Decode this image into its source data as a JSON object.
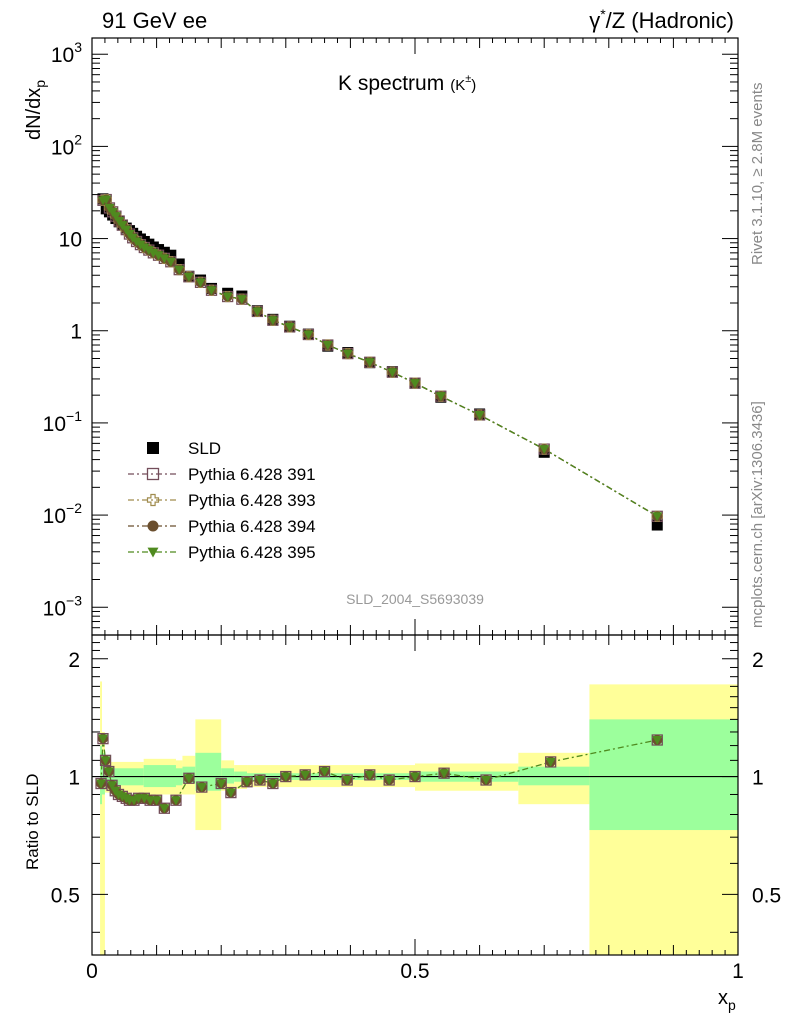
{
  "header": {
    "left": "91 GeV ee",
    "right_prefix": "γ",
    "right_sup": "*",
    "right_suffix": "/Z (Hadronic)"
  },
  "side_text": {
    "top": "Rivet 3.1.10, ≥ 2.8M events",
    "bottom": "mcplots.cern.ch [arXiv:1306.3436]"
  },
  "analysis_ref": "SLD_2004_S5693039",
  "chart_data": [
    {
      "type": "scatter",
      "title": "K spectrum",
      "title_sub": "(K",
      "title_sup": "±",
      "title_close": ")",
      "ylabel": "dN/dx",
      "ylabel_sub": "p",
      "xlim": [
        0,
        1
      ],
      "ylim": [
        0.0005,
        1500
      ],
      "yscale": "log",
      "y_ticks": [
        {
          "base": "10",
          "exp": "3",
          "value": 1000
        },
        {
          "base": "10",
          "exp": "2",
          "value": 100
        },
        {
          "base": "10",
          "exp": "",
          "value": 10
        },
        {
          "base": "1",
          "exp": "",
          "value": 1
        },
        {
          "base": "10",
          "exp": "−1",
          "value": 0.1
        },
        {
          "base": "10",
          "exp": "−2",
          "value": 0.01
        },
        {
          "base": "10",
          "exp": "−3",
          "value": 0.001
        }
      ],
      "legend_position": "bottom-left",
      "x": [
        0.017,
        0.022,
        0.027,
        0.032,
        0.037,
        0.042,
        0.047,
        0.053,
        0.058,
        0.063,
        0.069,
        0.075,
        0.081,
        0.088,
        0.095,
        0.103,
        0.112,
        0.122,
        0.135,
        0.15,
        0.168,
        0.185,
        0.21,
        0.232,
        0.256,
        0.28,
        0.306,
        0.335,
        0.365,
        0.396,
        0.43,
        0.465,
        0.5,
        0.54,
        0.6,
        0.7,
        0.875
      ],
      "series": [
        {
          "name": "SLD",
          "color": "#000000",
          "marker": "square-filled",
          "values": [
            27,
            21,
            19.5,
            18,
            16.5,
            15.2,
            14,
            13,
            12.2,
            11.4,
            10.6,
            9.9,
            9.3,
            8.7,
            8.1,
            7.6,
            7.1,
            6.6,
            5.3,
            3.9,
            3.55,
            2.88,
            2.55,
            2.38,
            1.65,
            1.33,
            1.12,
            0.92,
            0.68,
            0.58,
            0.45,
            0.36,
            0.27,
            0.19,
            0.125,
            0.048,
            0.0078
          ]
        },
        {
          "name": "Pythia 6.428 391",
          "color": "#734d5a",
          "marker": "square-open",
          "line": "dashdot",
          "values": [
            26,
            26.5,
            21.5,
            19.5,
            17.5,
            15.5,
            14,
            12.5,
            11.2,
            10.2,
            9.3,
            8.6,
            8.0,
            7.5,
            7.0,
            6.6,
            6.1,
            5.6,
            4.6,
            3.85,
            3.35,
            2.75,
            2.35,
            2.2,
            1.62,
            1.3,
            1.1,
            0.91,
            0.7,
            0.565,
            0.455,
            0.355,
            0.27,
            0.195,
            0.122,
            0.052,
            0.0097
          ]
        },
        {
          "name": "Pythia 6.428 393",
          "color": "#a08c4e",
          "marker": "cross-open",
          "line": "dashdot",
          "values": [
            26,
            26.5,
            21.5,
            19.5,
            17.5,
            15.5,
            14,
            12.5,
            11.2,
            10.2,
            9.3,
            8.6,
            8.0,
            7.5,
            7.0,
            6.6,
            6.1,
            5.6,
            4.6,
            3.85,
            3.35,
            2.75,
            2.35,
            2.2,
            1.62,
            1.3,
            1.1,
            0.91,
            0.7,
            0.565,
            0.455,
            0.355,
            0.27,
            0.195,
            0.122,
            0.052,
            0.0097
          ]
        },
        {
          "name": "Pythia 6.428 394",
          "color": "#6b4f2e",
          "marker": "circle-filled",
          "line": "dashdot",
          "values": [
            26,
            26.5,
            21.5,
            19.5,
            17.5,
            15.5,
            14,
            12.5,
            11.2,
            10.2,
            9.3,
            8.6,
            8.0,
            7.5,
            7.0,
            6.6,
            6.1,
            5.6,
            4.6,
            3.85,
            3.35,
            2.75,
            2.35,
            2.2,
            1.62,
            1.3,
            1.1,
            0.91,
            0.7,
            0.565,
            0.455,
            0.355,
            0.27,
            0.195,
            0.122,
            0.052,
            0.0097
          ]
        },
        {
          "name": "Pythia 6.428 395",
          "color": "#4f8a1f",
          "marker": "triangle-down-filled",
          "line": "dashdot",
          "values": [
            26,
            26.5,
            21.5,
            19.5,
            17.5,
            15.5,
            14,
            12.5,
            11.2,
            10.2,
            9.3,
            8.6,
            8.0,
            7.5,
            7.0,
            6.6,
            6.1,
            5.6,
            4.6,
            3.85,
            3.35,
            2.75,
            2.35,
            2.2,
            1.62,
            1.3,
            1.1,
            0.91,
            0.7,
            0.565,
            0.455,
            0.355,
            0.27,
            0.195,
            0.122,
            0.052,
            0.0097
          ]
        }
      ]
    },
    {
      "type": "scatter",
      "ylabel": "Ratio to SLD",
      "xlabel": "x",
      "xlabel_sub": "p",
      "xlim": [
        0,
        1
      ],
      "ylim": [
        0.35,
        2.3
      ],
      "yscale": "log",
      "y_ticks": [
        "0.5",
        "1",
        "2"
      ],
      "y_tick_values": [
        0.5,
        1,
        2
      ],
      "x_ticks": [
        "0",
        "0.5",
        "1"
      ],
      "x_tick_values": [
        0,
        0.5,
        1
      ],
      "reference_line": 1,
      "band_colors": {
        "inner": "#9cff9c",
        "outer": "#ffff99"
      },
      "bands": [
        {
          "x0": 0.0125,
          "x1": 0.0155,
          "lo1": 0.85,
          "hi1": 1.2,
          "lo2": 0.3,
          "hi2": 1.75
        },
        {
          "x0": 0.0155,
          "x1": 0.02,
          "lo1": 0.9,
          "hi1": 1.15,
          "lo2": 0.35,
          "hi2": 1.3
        },
        {
          "x0": 0.02,
          "x1": 0.08,
          "lo1": 0.95,
          "hi1": 1.05,
          "lo2": 0.91,
          "hi2": 1.09
        },
        {
          "x0": 0.08,
          "x1": 0.13,
          "lo1": 0.94,
          "hi1": 1.07,
          "lo2": 0.9,
          "hi2": 1.11
        },
        {
          "x0": 0.13,
          "x1": 0.14,
          "lo1": 0.95,
          "hi1": 1.05,
          "lo2": 0.9,
          "hi2": 1.1
        },
        {
          "x0": 0.14,
          "x1": 0.16,
          "lo1": 0.96,
          "hi1": 1.06,
          "lo2": 0.9,
          "hi2": 1.13
        },
        {
          "x0": 0.16,
          "x1": 0.2,
          "lo1": 0.92,
          "hi1": 1.15,
          "lo2": 0.73,
          "hi2": 1.4
        },
        {
          "x0": 0.2,
          "x1": 0.22,
          "lo1": 0.96,
          "hi1": 1.05,
          "lo2": 0.92,
          "hi2": 1.1
        },
        {
          "x0": 0.22,
          "x1": 0.24,
          "lo1": 0.97,
          "hi1": 1.03,
          "lo2": 0.93,
          "hi2": 1.07
        },
        {
          "x0": 0.24,
          "x1": 0.5,
          "lo1": 0.98,
          "hi1": 1.02,
          "lo2": 0.94,
          "hi2": 1.07
        },
        {
          "x0": 0.5,
          "x1": 0.66,
          "lo1": 0.97,
          "hi1": 1.03,
          "lo2": 0.92,
          "hi2": 1.08
        },
        {
          "x0": 0.66,
          "x1": 0.77,
          "lo1": 0.95,
          "hi1": 1.06,
          "lo2": 0.85,
          "hi2": 1.15
        },
        {
          "x0": 0.77,
          "x1": 1.0,
          "lo1": 0.73,
          "hi1": 1.4,
          "lo2": 0.3,
          "hi2": 1.72
        }
      ],
      "x": [
        0.014,
        0.017,
        0.021,
        0.026,
        0.031,
        0.036,
        0.041,
        0.047,
        0.053,
        0.058,
        0.065,
        0.072,
        0.081,
        0.09,
        0.1,
        0.112,
        0.13,
        0.15,
        0.17,
        0.2,
        0.215,
        0.24,
        0.26,
        0.28,
        0.3,
        0.33,
        0.36,
        0.395,
        0.43,
        0.46,
        0.5,
        0.545,
        0.61,
        0.71,
        0.875
      ],
      "values": [
        0.96,
        1.25,
        1.1,
        1.03,
        0.95,
        0.92,
        0.9,
        0.89,
        0.88,
        0.87,
        0.87,
        0.88,
        0.88,
        0.87,
        0.87,
        0.83,
        0.87,
        0.99,
        0.94,
        0.96,
        0.91,
        0.97,
        0.98,
        0.96,
        1.0,
        1.01,
        1.03,
        0.98,
        1.01,
        0.98,
        1.0,
        1.02,
        0.98,
        1.09,
        1.24
      ]
    }
  ]
}
